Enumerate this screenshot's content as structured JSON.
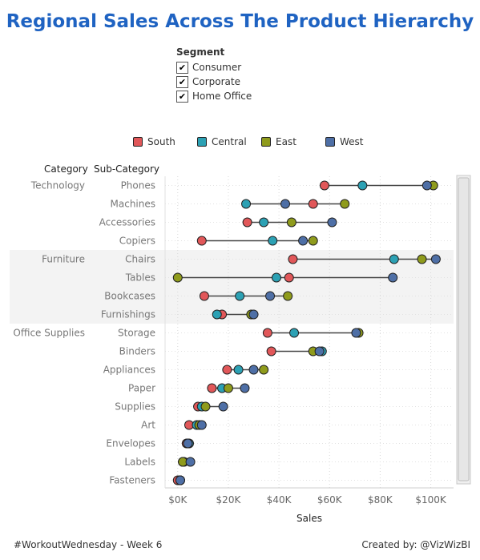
{
  "title": "Regional Sales Across The Product Hierarchy",
  "segment_filter": {
    "title": "Segment",
    "items": [
      {
        "label": "Consumer",
        "checked": true
      },
      {
        "label": "Corporate",
        "checked": true
      },
      {
        "label": "Home Office",
        "checked": true
      }
    ],
    "check_glyph": "✔"
  },
  "legend": [
    {
      "label": "South",
      "color": "#E15759"
    },
    {
      "label": "Central",
      "color": "#2CA1B4"
    },
    {
      "label": "East",
      "color": "#8F9B1C"
    },
    {
      "label": "West",
      "color": "#4E6FA6"
    }
  ],
  "colors": {
    "title": "#1F63C2",
    "band": "#F3F3F3"
  },
  "chart_data": {
    "type": "scatter",
    "title": "Regional Sales Across The Product Hierarchy",
    "column_headers": {
      "category": "Category",
      "subcategory": "Sub-Category"
    },
    "xlabel": "Sales",
    "xlim": [
      -5000,
      109000
    ],
    "xticks": [
      0,
      20000,
      40000,
      60000,
      80000,
      100000
    ],
    "xtick_labels": [
      "$0K",
      "$20K",
      "$40K",
      "$60K",
      "$80K",
      "$100K"
    ],
    "series_order": [
      "South",
      "Central",
      "East",
      "West"
    ],
    "categories": [
      {
        "name": "Technology",
        "banded": false,
        "rows": [
          {
            "sub": "Phones",
            "values": [
              58000,
              73000,
              101000,
              98500
            ]
          },
          {
            "sub": "Machines",
            "values": [
              53500,
              27000,
              66000,
              42500
            ]
          },
          {
            "sub": "Accessories",
            "values": [
              27500,
              34000,
              45000,
              61000
            ]
          },
          {
            "sub": "Copiers",
            "values": [
              9500,
              37500,
              53500,
              49500
            ]
          }
        ]
      },
      {
        "name": "Furniture",
        "banded": true,
        "rows": [
          {
            "sub": "Chairs",
            "values": [
              45500,
              85500,
              96500,
              102000
            ]
          },
          {
            "sub": "Tables",
            "values": [
              44000,
              39000,
              0,
              85000
            ]
          },
          {
            "sub": "Bookcases",
            "values": [
              10500,
              24500,
              43500,
              36500
            ]
          },
          {
            "sub": "Furnishings",
            "values": [
              17500,
              15500,
              29000,
              30000
            ]
          }
        ]
      },
      {
        "name": "Office Supplies",
        "banded": false,
        "rows": [
          {
            "sub": "Storage",
            "values": [
              35500,
              46000,
              71500,
              70500
            ]
          },
          {
            "sub": "Binders",
            "values": [
              37000,
              57000,
              53500,
              56000
            ]
          },
          {
            "sub": "Appliances",
            "values": [
              19500,
              24000,
              34000,
              30000
            ]
          },
          {
            "sub": "Paper",
            "values": [
              13500,
              17500,
              20000,
              26500
            ]
          },
          {
            "sub": "Supplies",
            "values": [
              8000,
              9500,
              11000,
              18000
            ]
          },
          {
            "sub": "Art",
            "values": [
              4500,
              7500,
              8500,
              9500
            ]
          },
          {
            "sub": "Envelopes",
            "values": [
              3500,
              4500,
              4000,
              4000
            ]
          },
          {
            "sub": "Labels",
            "values": [
              2500,
              2000,
              2000,
              5000
            ]
          },
          {
            "sub": "Fasteners",
            "values": [
              0,
              1000,
              1000,
              1000
            ]
          }
        ]
      }
    ],
    "grid": true,
    "legend_position": "top"
  },
  "footer": {
    "left": "#WorkoutWednesday - Week 6",
    "right": "Created by: @VizWizBI"
  }
}
